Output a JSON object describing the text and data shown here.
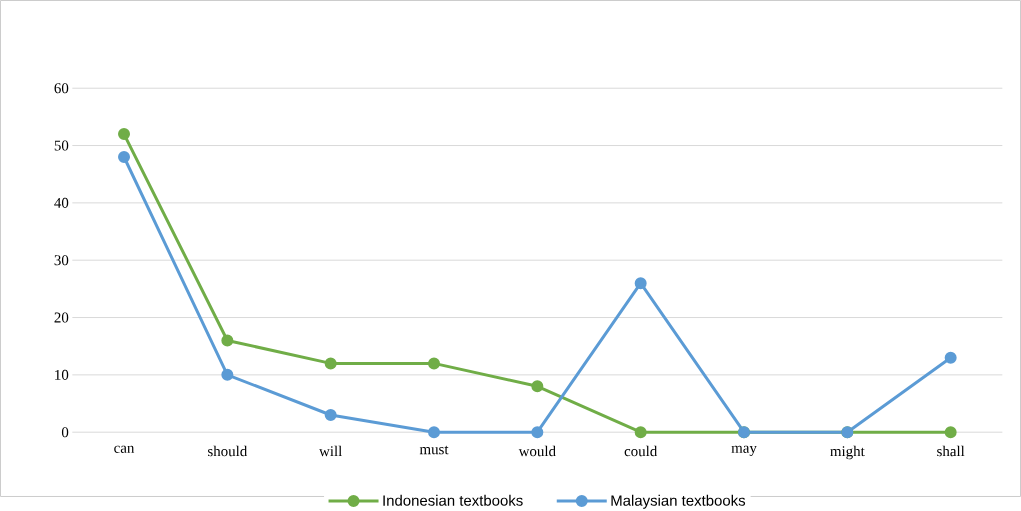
{
  "chart_data": {
    "type": "line",
    "categories": [
      "can",
      "should",
      "will",
      "must",
      "would",
      "could",
      "may",
      "might",
      "shall"
    ],
    "series": [
      {
        "name": "Indonesian textbooks",
        "color": "#70ad47",
        "values": [
          52,
          16,
          12,
          12,
          8,
          0,
          0,
          0,
          0
        ]
      },
      {
        "name": "Malaysian textbooks",
        "color": "#5b9bd5",
        "values": [
          48,
          10,
          3,
          0,
          0,
          26,
          0,
          0,
          13
        ]
      }
    ],
    "ylim": [
      0,
      60
    ],
    "yticks": [
      0,
      10,
      20,
      30,
      40,
      50,
      60
    ],
    "grid": "y",
    "legend": "bottom",
    "marker": "circle",
    "line_style": "solid"
  }
}
